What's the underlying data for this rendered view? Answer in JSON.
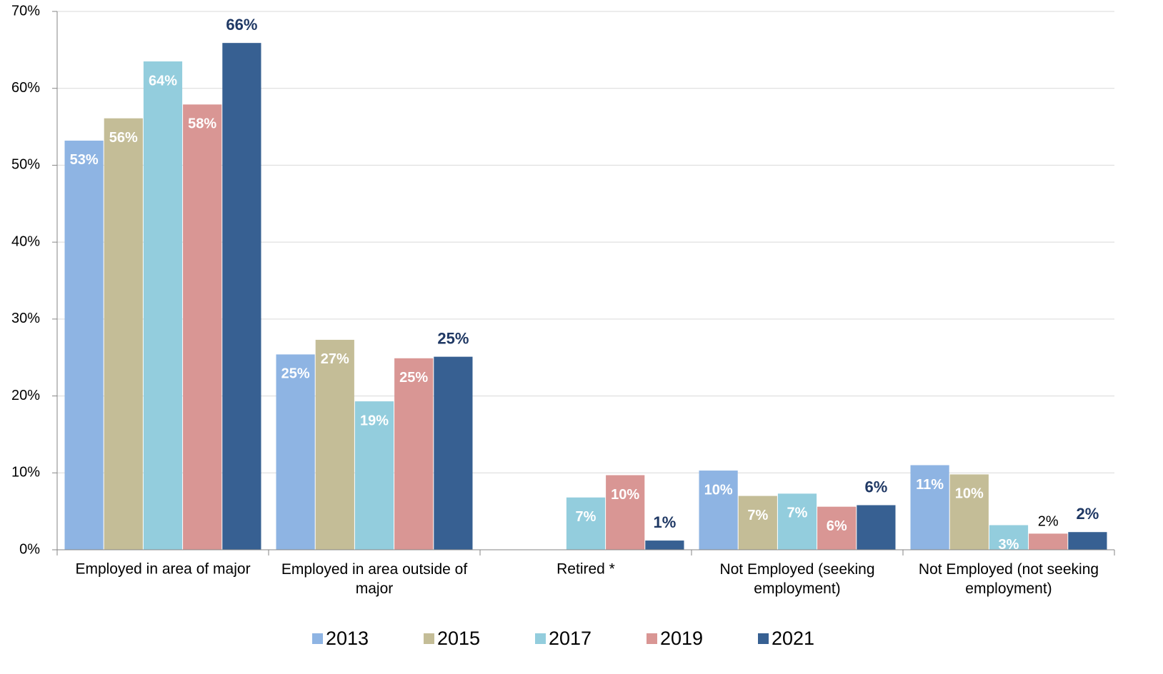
{
  "chart_data": {
    "type": "bar",
    "categories": [
      "Employed in area of major",
      "Employed in area outside of major",
      "Retired *",
      "Not Employed (seeking employment)",
      "Not Employed (not seeking employment)"
    ],
    "series": [
      {
        "name": "2013",
        "color": "#8EB4E3",
        "values": [
          53.2,
          25.4,
          null,
          10.3,
          11.0
        ],
        "value_labels": [
          "53%",
          "25%",
          null,
          "10%",
          "11%"
        ]
      },
      {
        "name": "2015",
        "color": "#C4BD97",
        "values": [
          56.1,
          27.3,
          null,
          7.0,
          9.8
        ],
        "value_labels": [
          "56%",
          "27%",
          null,
          "7%",
          "10%"
        ]
      },
      {
        "name": "2017",
        "color": "#93CDDD",
        "values": [
          63.5,
          19.3,
          6.8,
          7.3,
          3.2
        ],
        "value_labels": [
          "64%",
          "19%",
          "7%",
          "7%",
          "3%"
        ]
      },
      {
        "name": "2019",
        "color": "#D99694",
        "values": [
          57.9,
          24.9,
          9.7,
          5.6,
          2.1
        ],
        "value_labels": [
          "58%",
          "25%",
          "10%",
          "6%",
          "2%"
        ]
      },
      {
        "name": "2021",
        "color": "#376092",
        "values": [
          65.9,
          25.1,
          1.2,
          5.8,
          2.3
        ],
        "value_labels": [
          "66%",
          "25%",
          "1%",
          "6%",
          "2%"
        ]
      }
    ],
    "ylim": [
      0,
      70
    ],
    "yticks": [
      {
        "value": 0,
        "label": "0%"
      },
      {
        "value": 10,
        "label": "10%"
      },
      {
        "value": 20,
        "label": "20%"
      },
      {
        "value": 30,
        "label": "30%"
      },
      {
        "value": 40,
        "label": "40%"
      },
      {
        "value": 50,
        "label": "50%"
      },
      {
        "value": 60,
        "label": "60%"
      },
      {
        "value": 70,
        "label": "70%"
      }
    ],
    "grid": true,
    "legend": "bottom"
  }
}
